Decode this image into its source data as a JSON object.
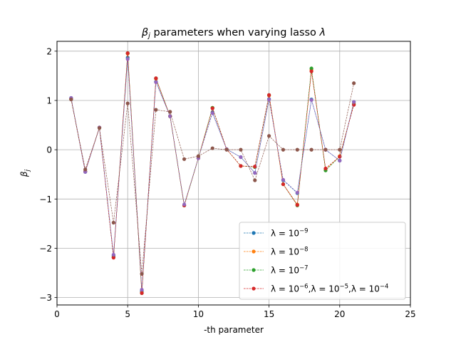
{
  "chart_data": {
    "type": "line",
    "title_parts": {
      "prefix": "β",
      "sub": "j",
      "rest": " parameters when varying lasso ",
      "lambda": "λ"
    },
    "xlabel": "-th parameter",
    "ylabel_parts": {
      "main": "β",
      "sub": "j"
    },
    "xlim": [
      0,
      25
    ],
    "ylim": [
      -3.15,
      2.2
    ],
    "xticks": [
      0,
      5,
      10,
      15,
      20,
      25
    ],
    "yticks": [
      -3,
      -2,
      -1,
      0,
      1,
      2
    ],
    "ytick_labels": [
      "−3",
      "−2",
      "−1",
      "0",
      "1",
      "2"
    ],
    "grid": true,
    "legend_position": "lower right",
    "x": [
      1,
      2,
      3,
      4,
      5,
      6,
      7,
      8,
      9,
      10,
      11,
      12,
      13,
      14,
      15,
      16,
      17,
      18,
      19,
      20,
      21
    ],
    "series": [
      {
        "name": "λ=10^-9",
        "legend_parts": [
          {
            "t": "λ = 10"
          },
          {
            "t": "−9",
            "sup": true
          }
        ],
        "color": "#1f77b4",
        "values": [
          1.05,
          -0.45,
          0.45,
          -2.15,
          1.87,
          -2.87,
          1.38,
          0.68,
          -1.13,
          -0.17,
          0.76,
          0.01,
          -0.15,
          -0.47,
          1.03,
          -0.62,
          -0.88,
          1.02,
          0.0,
          -0.22,
          0.97
        ]
      },
      {
        "name": "λ=10^-8",
        "legend_parts": [
          {
            "t": "λ = 10"
          },
          {
            "t": "−8",
            "sup": true
          }
        ],
        "color": "#ff7f0e",
        "values": [
          1.03,
          -0.44,
          0.45,
          -2.18,
          1.95,
          -2.9,
          1.44,
          0.68,
          -1.13,
          -0.17,
          0.85,
          0.01,
          -0.33,
          -0.35,
          1.1,
          -0.7,
          -1.11,
          1.62,
          -0.4,
          -0.13,
          0.93
        ]
      },
      {
        "name": "λ=10^-7",
        "legend_parts": [
          {
            "t": "λ = 10"
          },
          {
            "t": "−7",
            "sup": true
          }
        ],
        "color": "#2ca02c",
        "values": [
          1.03,
          -0.44,
          0.45,
          -2.18,
          1.96,
          -2.91,
          1.45,
          0.68,
          -1.13,
          -0.17,
          0.85,
          0.01,
          -0.33,
          -0.35,
          1.11,
          -0.7,
          -1.13,
          1.65,
          -0.42,
          -0.14,
          0.92
        ]
      },
      {
        "name": "λ=10^-6,λ=10^-5,λ=10^-4",
        "legend_parts": [
          {
            "t": "λ = 10"
          },
          {
            "t": "−6",
            "sup": true
          },
          {
            "t": ",λ = 10"
          },
          {
            "t": "−5",
            "sup": true
          },
          {
            "t": ",λ = 10"
          },
          {
            "t": "−4",
            "sup": true
          }
        ],
        "color": "#d62728",
        "values": [
          1.03,
          -0.44,
          0.45,
          -2.19,
          1.96,
          -2.91,
          1.45,
          0.68,
          -1.13,
          -0.17,
          0.84,
          0.01,
          -0.33,
          -0.34,
          1.11,
          -0.7,
          -1.12,
          1.59,
          -0.38,
          -0.14,
          0.91
        ]
      },
      {
        "name": "λ=10^-3",
        "color": "#9467bd",
        "in_legend": false,
        "values": [
          1.05,
          -0.45,
          0.45,
          -2.13,
          1.84,
          -2.84,
          1.37,
          0.68,
          -1.11,
          -0.17,
          0.74,
          0.01,
          -0.15,
          -0.47,
          1.02,
          -0.61,
          -0.87,
          1.01,
          0.0,
          -0.22,
          0.97
        ]
      },
      {
        "name": "λ=10^-2",
        "color": "#8c564b",
        "in_legend": false,
        "values": [
          1.02,
          -0.4,
          0.44,
          -1.48,
          0.94,
          -2.52,
          0.81,
          0.77,
          -0.19,
          -0.13,
          0.03,
          0.0,
          0.0,
          -0.62,
          0.28,
          0.0,
          0.0,
          0.0,
          0.0,
          0.0,
          1.35
        ]
      }
    ]
  }
}
